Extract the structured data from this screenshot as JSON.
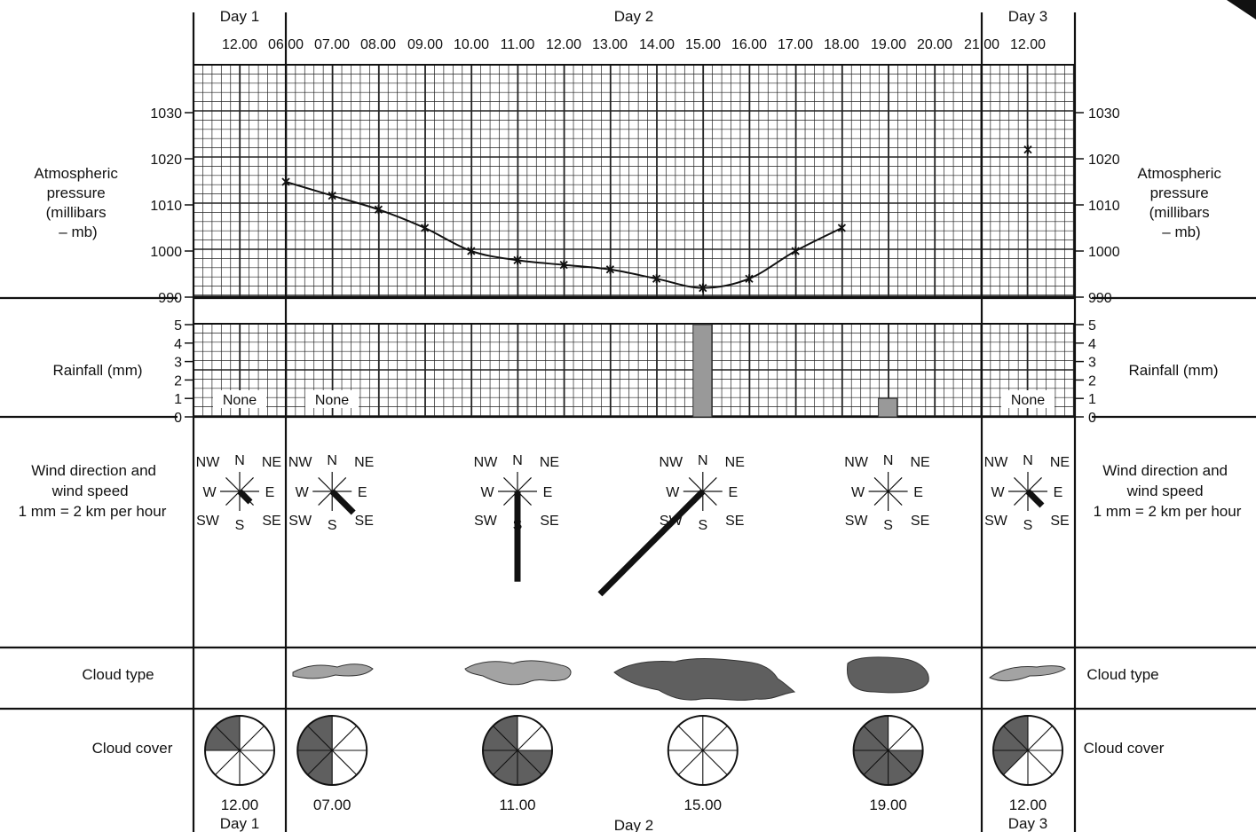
{
  "colors": {
    "line": "#111111",
    "rain_bar": "#999999",
    "cloud_light": "#a3a3a3",
    "cloud_dark": "#5f5f5f",
    "cover_fill": "#5f5f5f"
  },
  "labels": {
    "pressure_left": [
      "Atmospheric",
      "pressure",
      "(millibars",
      "– mb)"
    ],
    "pressure_right": [
      "Atmospheric",
      "pressure",
      "(millibars",
      "– mb)"
    ],
    "rainfall": "Rainfall (mm)",
    "wind": [
      "Wind direction and",
      "wind speed",
      "1 mm = 2 km per hour"
    ],
    "cloud_type": "Cloud type",
    "cloud_cover": "Cloud cover",
    "none": "None"
  },
  "compass": {
    "n": "N",
    "ne": "NE",
    "e": "E",
    "se": "SE",
    "s": "S",
    "sw": "SW",
    "w": "W",
    "nw": "NW"
  },
  "chart_data": {
    "type": "line",
    "days": [
      "Day 1",
      "Day 2",
      "Day 3"
    ],
    "time_ticks": [
      "12.00",
      "06.00",
      "07.00",
      "08.00",
      "09.00",
      "10.00",
      "11.00",
      "12.00",
      "13.00",
      "14.00",
      "15.00",
      "16.00",
      "17.00",
      "18.00",
      "19.00",
      "20.00",
      "21.00",
      "12.00"
    ],
    "pressure": {
      "ylim": [
        990,
        1040
      ],
      "yticks": [
        "1030",
        "1020",
        "1010",
        "1000",
        "990"
      ],
      "day2_values": [
        {
          "time": "06.00",
          "mb": 1015
        },
        {
          "time": "07.00",
          "mb": 1012
        },
        {
          "time": "08.00",
          "mb": 1009
        },
        {
          "time": "09.00",
          "mb": 1005
        },
        {
          "time": "10.00",
          "mb": 1000
        },
        {
          "time": "11.00",
          "mb": 998
        },
        {
          "time": "12.00",
          "mb": 997
        },
        {
          "time": "13.00",
          "mb": 996
        },
        {
          "time": "14.00",
          "mb": 994
        },
        {
          "time": "15.00",
          "mb": 992
        },
        {
          "time": "16.00",
          "mb": 994
        },
        {
          "time": "17.00",
          "mb": 1000
        },
        {
          "time": "18.00",
          "mb": 1005
        }
      ],
      "day3": {
        "time": "12.00",
        "mb": 1022
      }
    },
    "rainfall": {
      "ylim": [
        0,
        5
      ],
      "yticks": [
        "5",
        "4",
        "3",
        "2",
        "1",
        "0"
      ],
      "values": [
        {
          "time": "15.00",
          "mm": 5
        },
        {
          "time": "19.00",
          "mm": 1
        }
      ]
    },
    "observations": [
      {
        "time": "12.00",
        "day": "Day 1",
        "wind_direction": "SE",
        "wind_length_mm": 1.5,
        "cloud": "",
        "cover_oktas": 2
      },
      {
        "time": "07.00",
        "day": "Day 2",
        "wind_direction": "SE",
        "wind_length_mm": 3,
        "cloud": "light",
        "cover_oktas": 4
      },
      {
        "time": "11.00",
        "day": "Day 2",
        "wind_direction": "S",
        "wind_length_mm": 9,
        "cloud": "light",
        "cover_oktas": 6
      },
      {
        "time": "15.00",
        "day": "Day 2",
        "wind_direction": "SW",
        "wind_length_mm": 14.5,
        "cloud": "dark",
        "cover_oktas": 0
      },
      {
        "time": "19.00",
        "day": "Day 2",
        "wind_direction": "",
        "wind_length_mm": 0,
        "cloud": "dark",
        "cover_oktas": 6
      },
      {
        "time": "12.00",
        "day": "Day 3",
        "wind_direction": "SE",
        "wind_length_mm": 2,
        "cloud": "light",
        "cover_oktas": 3
      }
    ]
  }
}
